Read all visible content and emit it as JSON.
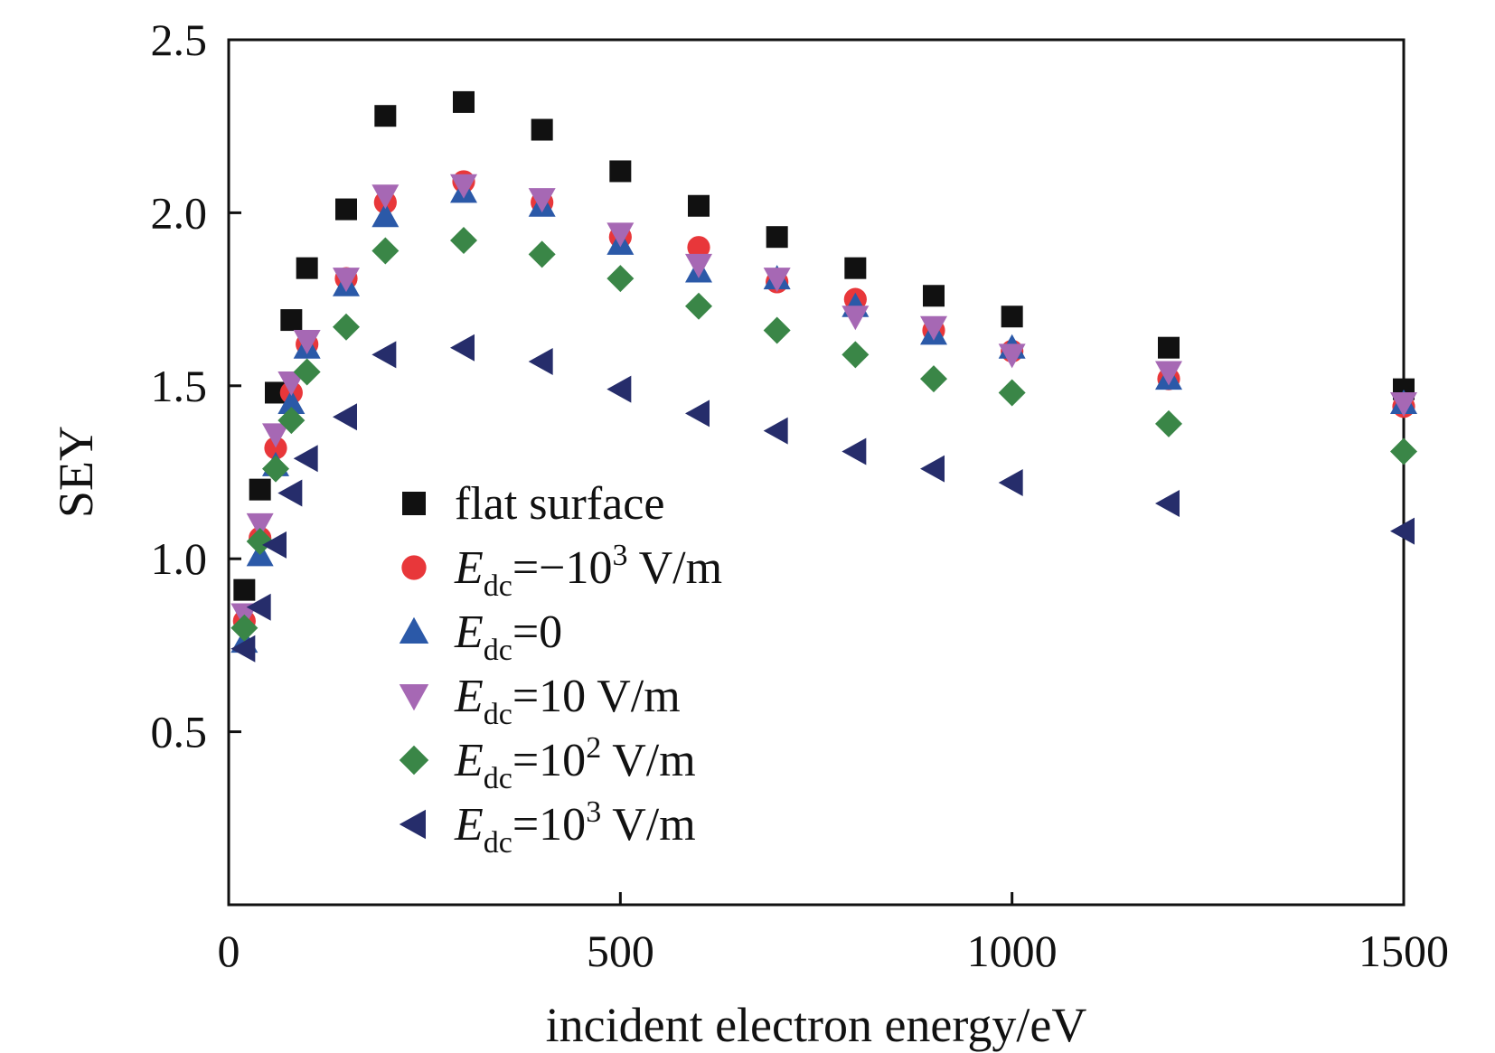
{
  "chart_data": {
    "type": "scatter",
    "xlabel": "incident electron energy/eV",
    "ylabel": "SEY",
    "xlim": [
      0,
      1500
    ],
    "ylim": [
      0,
      2.5
    ],
    "x_ticks": [
      "0",
      "500",
      "1000",
      "1500"
    ],
    "y_ticks": [
      "0.5",
      "1.0",
      "1.5",
      "2.0",
      "2.5"
    ],
    "x_tick_values": [
      0,
      500,
      1000,
      1500
    ],
    "y_tick_values": [
      0.5,
      1.0,
      1.5,
      2.0,
      2.5
    ],
    "grid": false,
    "legend_position": "bottom-left",
    "x": [
      20,
      40,
      60,
      80,
      100,
      150,
      200,
      300,
      400,
      500,
      600,
      700,
      800,
      900,
      1000,
      1200,
      1500
    ],
    "series": [
      {
        "name": "flat surface",
        "legend_main": "flat surface",
        "legend_sub": "",
        "legend_rest": "",
        "legend_sup": "",
        "legend_tail": "",
        "marker": "square",
        "color": "#111111",
        "values": [
          0.91,
          1.2,
          1.48,
          1.69,
          1.84,
          2.01,
          2.28,
          2.32,
          2.24,
          2.12,
          2.02,
          1.93,
          1.84,
          1.76,
          1.7,
          1.61,
          1.49
        ]
      },
      {
        "name": "Edc=−10³ V/m",
        "legend_main": "E",
        "legend_sub": "dc",
        "legend_rest": "=−10",
        "legend_sup": "3",
        "legend_tail": " V/m",
        "marker": "circle",
        "color": "#e8373a",
        "values": [
          0.82,
          1.06,
          1.32,
          1.48,
          1.62,
          1.81,
          2.03,
          2.09,
          2.03,
          1.93,
          1.9,
          1.8,
          1.75,
          1.66,
          1.6,
          1.52,
          1.44
        ]
      },
      {
        "name": "Edc=0",
        "legend_main": "E",
        "legend_sub": "dc",
        "legend_rest": "=0",
        "legend_sup": "",
        "legend_tail": "",
        "marker": "triangle-up",
        "color": "#2b59a8",
        "values": [
          0.76,
          1.01,
          1.27,
          1.45,
          1.61,
          1.79,
          1.99,
          2.06,
          2.02,
          1.91,
          1.83,
          1.81,
          1.73,
          1.65,
          1.61,
          1.52,
          1.45
        ]
      },
      {
        "name": "Edc=10 V/m",
        "legend_main": "E",
        "legend_sub": "dc",
        "legend_rest": "=10 V/m",
        "legend_sup": "",
        "legend_tail": "",
        "marker": "triangle-down",
        "color": "#a668b4",
        "values": [
          0.84,
          1.1,
          1.36,
          1.51,
          1.63,
          1.81,
          2.05,
          2.08,
          2.04,
          1.94,
          1.85,
          1.81,
          1.7,
          1.67,
          1.59,
          1.54,
          1.45
        ]
      },
      {
        "name": "Edc=10² V/m",
        "legend_main": "E",
        "legend_sub": "dc",
        "legend_rest": "=10",
        "legend_sup": "2",
        "legend_tail": " V/m",
        "marker": "diamond",
        "color": "#3a8647",
        "values": [
          0.8,
          1.05,
          1.26,
          1.4,
          1.54,
          1.67,
          1.89,
          1.92,
          1.88,
          1.81,
          1.73,
          1.66,
          1.59,
          1.52,
          1.48,
          1.39,
          1.31
        ]
      },
      {
        "name": "Edc=10³ V/m",
        "legend_main": "E",
        "legend_sub": "dc",
        "legend_rest": "=10",
        "legend_sup": "3",
        "legend_tail": " V/m",
        "marker": "triangle-left",
        "color": "#262d6b",
        "values": [
          0.74,
          0.86,
          1.04,
          1.19,
          1.29,
          1.41,
          1.59,
          1.61,
          1.57,
          1.49,
          1.42,
          1.37,
          1.31,
          1.26,
          1.22,
          1.16,
          1.08
        ]
      }
    ]
  }
}
